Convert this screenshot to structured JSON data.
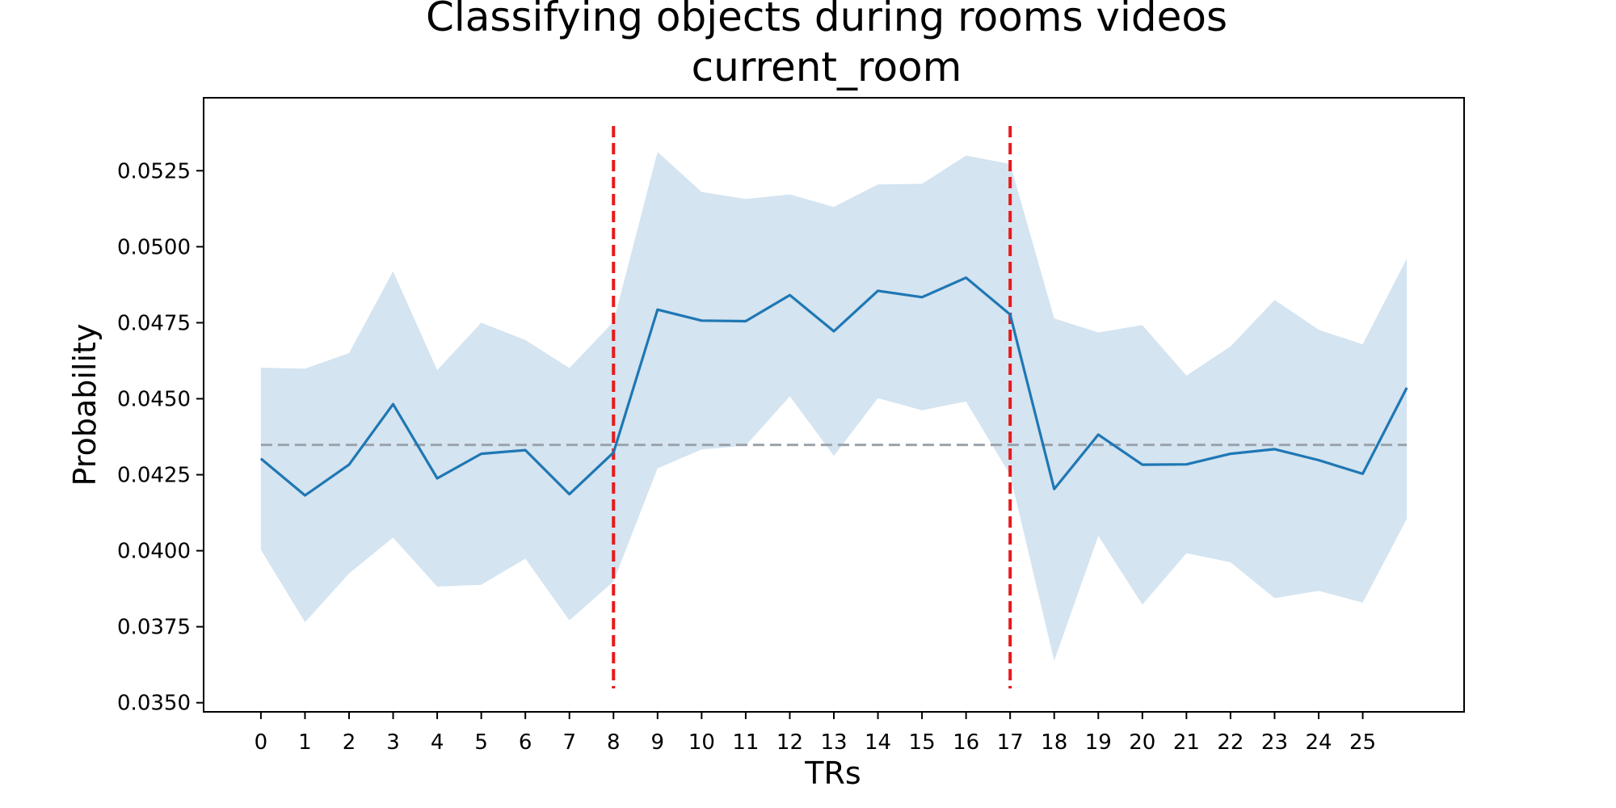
{
  "chart_data": {
    "type": "line",
    "title": "Classifying objects during rooms videos",
    "subtitle": "current_room",
    "xlabel": "TRs",
    "ylabel": "Probability",
    "x": [
      0,
      1,
      2,
      3,
      4,
      5,
      6,
      7,
      8,
      9,
      10,
      11,
      12,
      13,
      14,
      15,
      16,
      17,
      18,
      19,
      20,
      21,
      22,
      23,
      24,
      25,
      26
    ],
    "x_tick_labels": [
      "0",
      "1",
      "2",
      "3",
      "4",
      "5",
      "6",
      "7",
      "8",
      "9",
      "10",
      "11",
      "12",
      "13",
      "14",
      "15",
      "16",
      "17",
      "18",
      "19",
      "20",
      "21",
      "22",
      "23",
      "24",
      "25"
    ],
    "xlim": [
      -1.3,
      27.3
    ],
    "ylim": [
      0.0347,
      0.0549
    ],
    "y_ticks": [
      0.035,
      0.0375,
      0.04,
      0.0425,
      0.045,
      0.0475,
      0.05,
      0.0525
    ],
    "y_tick_labels": [
      "0.0350",
      "0.0375",
      "0.0400",
      "0.0425",
      "0.0450",
      "0.0475",
      "0.0500",
      "0.0525"
    ],
    "series": [
      {
        "values": [
          0.04303,
          0.04182,
          0.04283,
          0.04482,
          0.04238,
          0.04319,
          0.04331,
          0.04186,
          0.04323,
          0.04793,
          0.04757,
          0.04755,
          0.04841,
          0.04722,
          0.04855,
          0.04834,
          0.04898,
          0.04777,
          0.04203,
          0.04382,
          0.04283,
          0.04284,
          0.04319,
          0.04334,
          0.04298,
          0.04253,
          0.04536
        ],
        "lower": [
          0.04003,
          0.03765,
          0.03925,
          0.04043,
          0.03882,
          0.03888,
          0.03974,
          0.03771,
          0.03899,
          0.04271,
          0.04333,
          0.04346,
          0.04508,
          0.04312,
          0.04502,
          0.04462,
          0.04491,
          0.04249,
          0.03638,
          0.04049,
          0.03823,
          0.03992,
          0.03962,
          0.03844,
          0.03868,
          0.03829,
          0.04105
        ],
        "upper": [
          0.04602,
          0.04599,
          0.0465,
          0.04919,
          0.04594,
          0.0475,
          0.04693,
          0.04601,
          0.04753,
          0.05312,
          0.0518,
          0.05157,
          0.05172,
          0.05131,
          0.05205,
          0.05207,
          0.053,
          0.05272,
          0.04764,
          0.04718,
          0.04742,
          0.04576,
          0.04672,
          0.04825,
          0.04727,
          0.04679,
          0.04961
        ],
        "color": "#1f77b4",
        "band_color": "#d4e4f0"
      }
    ],
    "reference_lines": [
      {
        "orientation": "horizontal",
        "value": 0.04348,
        "color": "#9aa3ab",
        "style": "dashed"
      },
      {
        "orientation": "vertical",
        "value": 8,
        "color": "#e8191a",
        "style": "dashed"
      },
      {
        "orientation": "vertical",
        "value": 17,
        "color": "#e8191a",
        "style": "dashed"
      }
    ],
    "grid": false,
    "legend": "none"
  }
}
